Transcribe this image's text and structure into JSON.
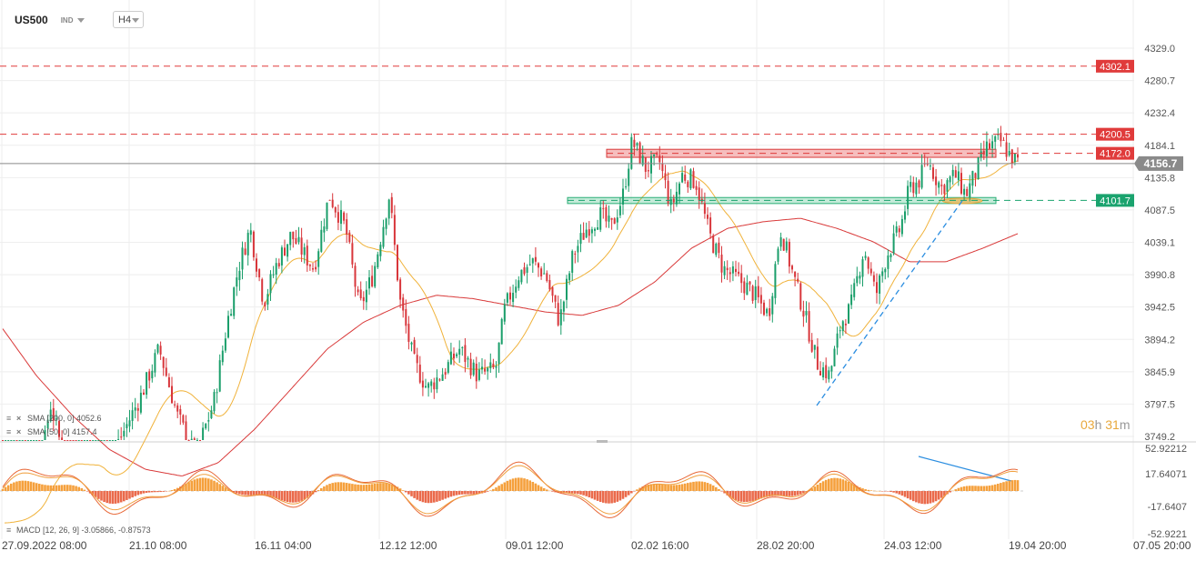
{
  "header": {
    "symbol": "US500",
    "market": "IND",
    "timeframe": "H4"
  },
  "price_axis": {
    "ticks": [
      "4329.0",
      "4280.7",
      "4232.4",
      "4184.1",
      "4135.8",
      "4087.5",
      "4039.1",
      "3990.8",
      "3942.5",
      "3894.2",
      "3845.9",
      "3797.5",
      "3749.2"
    ]
  },
  "macd_axis": {
    "ticks": [
      "52.92212",
      "17.64071",
      "-17.6407",
      "-52.9221"
    ]
  },
  "time_axis": {
    "ticks": [
      "27.09.2022 08:00",
      "21.10 08:00",
      "16.11 04:00",
      "12.12 12:00",
      "09.01 12:00",
      "02.02 16:00",
      "28.02 20:00",
      "24.03 12:00",
      "19.04 20:00",
      "07.05 20:00"
    ]
  },
  "levels": [
    {
      "label": "4302.1",
      "color": "#e03b3b"
    },
    {
      "label": "4200.5",
      "color": "#e03b3b"
    },
    {
      "label": "4172.0",
      "color": "#e03b3b"
    },
    {
      "label": "4101.7",
      "color": "#1aa36e"
    }
  ],
  "current_price": {
    "label": "4156.7",
    "color": "#8a8a8a"
  },
  "indicators": {
    "sma200": "SMA [200, 0] 4052.6",
    "sma50": "SMA [50, 0] 4157.4",
    "macd": "MACD [12, 26, 9] -3.05866, -0.87573"
  },
  "timer": {
    "h": "03",
    "h_unit": "h",
    "m": "31",
    "m_unit": "m"
  },
  "colors": {
    "up": "#1a9e6a",
    "down": "#d8363b",
    "sma50": "#f0b23a",
    "sma200": "#d93a3a",
    "macd_pos": "#f5a03c",
    "macd_neg": "#ea6a4b",
    "trend": "#2a8de0"
  },
  "chart_data": {
    "type": "candlestick",
    "symbol": "US500",
    "timeframe": "H4",
    "ylim": [
      3749.2,
      4329.0
    ],
    "x": [
      "27.09.2022",
      "21.10",
      "16.11",
      "12.12",
      "09.01",
      "02.02",
      "28.02",
      "24.03",
      "19.04"
    ],
    "close_approx": [
      3680,
      3750,
      4000,
      3850,
      3990,
      4140,
      3950,
      4110,
      4156.7
    ],
    "horizontal_levels": [
      4302.1,
      4200.5,
      4172.0,
      4101.7
    ],
    "current": 4156.7,
    "sma200_last": 4052.6,
    "sma50_last": 4157.4,
    "macd": {
      "params": [
        12,
        26,
        9
      ],
      "values": [
        -3.05866,
        -0.87573
      ],
      "range": [
        -52.9221,
        52.92212
      ]
    }
  }
}
